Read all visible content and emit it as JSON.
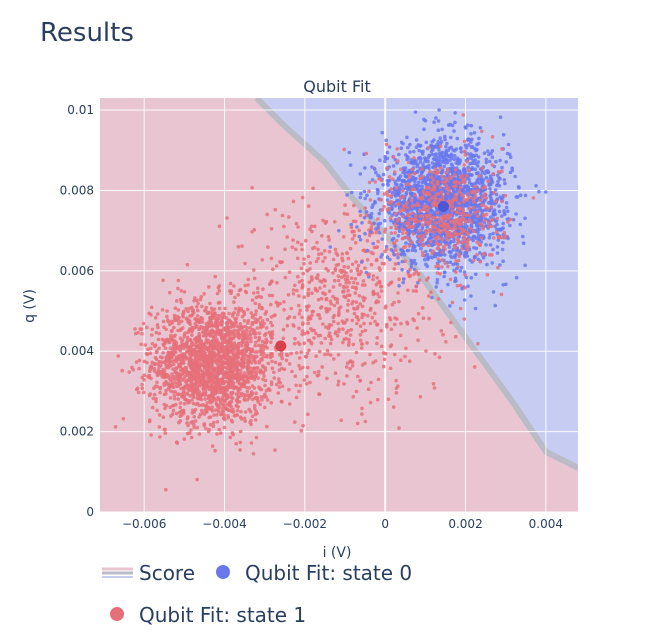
{
  "page": {
    "title": "Results"
  },
  "chart_data": {
    "type": "scatter",
    "title": "Qubit Fit",
    "xlabel": "i (V)",
    "ylabel": "q (V)",
    "xlim": [
      -0.0071,
      0.0048
    ],
    "ylim": [
      0.0,
      0.0103
    ],
    "xticks": [
      -0.006,
      -0.004,
      -0.002,
      0,
      0.002,
      0.004
    ],
    "xtick_labels": [
      "−0.006",
      "−0.004",
      "−0.002",
      "0",
      "0.002",
      "0.004"
    ],
    "yticks": [
      0,
      0.002,
      0.004,
      0.006,
      0.008,
      0.01
    ],
    "ytick_labels": [
      "0",
      "0.002",
      "0.004",
      "0.006",
      "0.008",
      "0.01"
    ],
    "grid": true,
    "legend_position": "bottom",
    "background": {
      "name": "Score",
      "state1_color": "#e8c5d0",
      "state0_color": "#c7cdf2",
      "boundary_color": "#b9bcc6",
      "boundary_i": [
        -0.0032,
        -0.0025,
        -0.0015,
        -0.0008,
        0.0,
        0.0008,
        0.0016,
        0.0024,
        0.0032,
        0.004,
        0.0048
      ],
      "boundary_q": [
        0.0103,
        0.0096,
        0.0087,
        0.0078,
        0.0069,
        0.006,
        0.0049,
        0.0038,
        0.0027,
        0.0015,
        0.0011
      ]
    },
    "series": [
      {
        "name": "Qubit Fit: state 0",
        "color": "#6a78ee",
        "center": [
          0.00145,
          0.0076
        ],
        "clusters": [
          {
            "mean": [
              0.00145,
              0.0077
            ],
            "std": [
              0.00078,
              0.00075
            ],
            "n": 1900
          }
        ]
      },
      {
        "name": "Qubit Fit: state 1",
        "color": "#e5707a",
        "center": [
          -0.0026,
          0.00413
        ],
        "clusters": [
          {
            "mean": [
              -0.0043,
              0.0037
            ],
            "std": [
              0.00075,
              0.00075
            ],
            "n": 2000
          },
          {
            "mean": [
              0.0014,
              0.0074
            ],
            "std": [
              0.00075,
              0.00075
            ],
            "n": 500
          },
          {
            "mean": [
              -0.0012,
              0.0052
            ],
            "std": [
              0.00135,
              0.0012
            ],
            "n": 650
          }
        ]
      }
    ]
  }
}
